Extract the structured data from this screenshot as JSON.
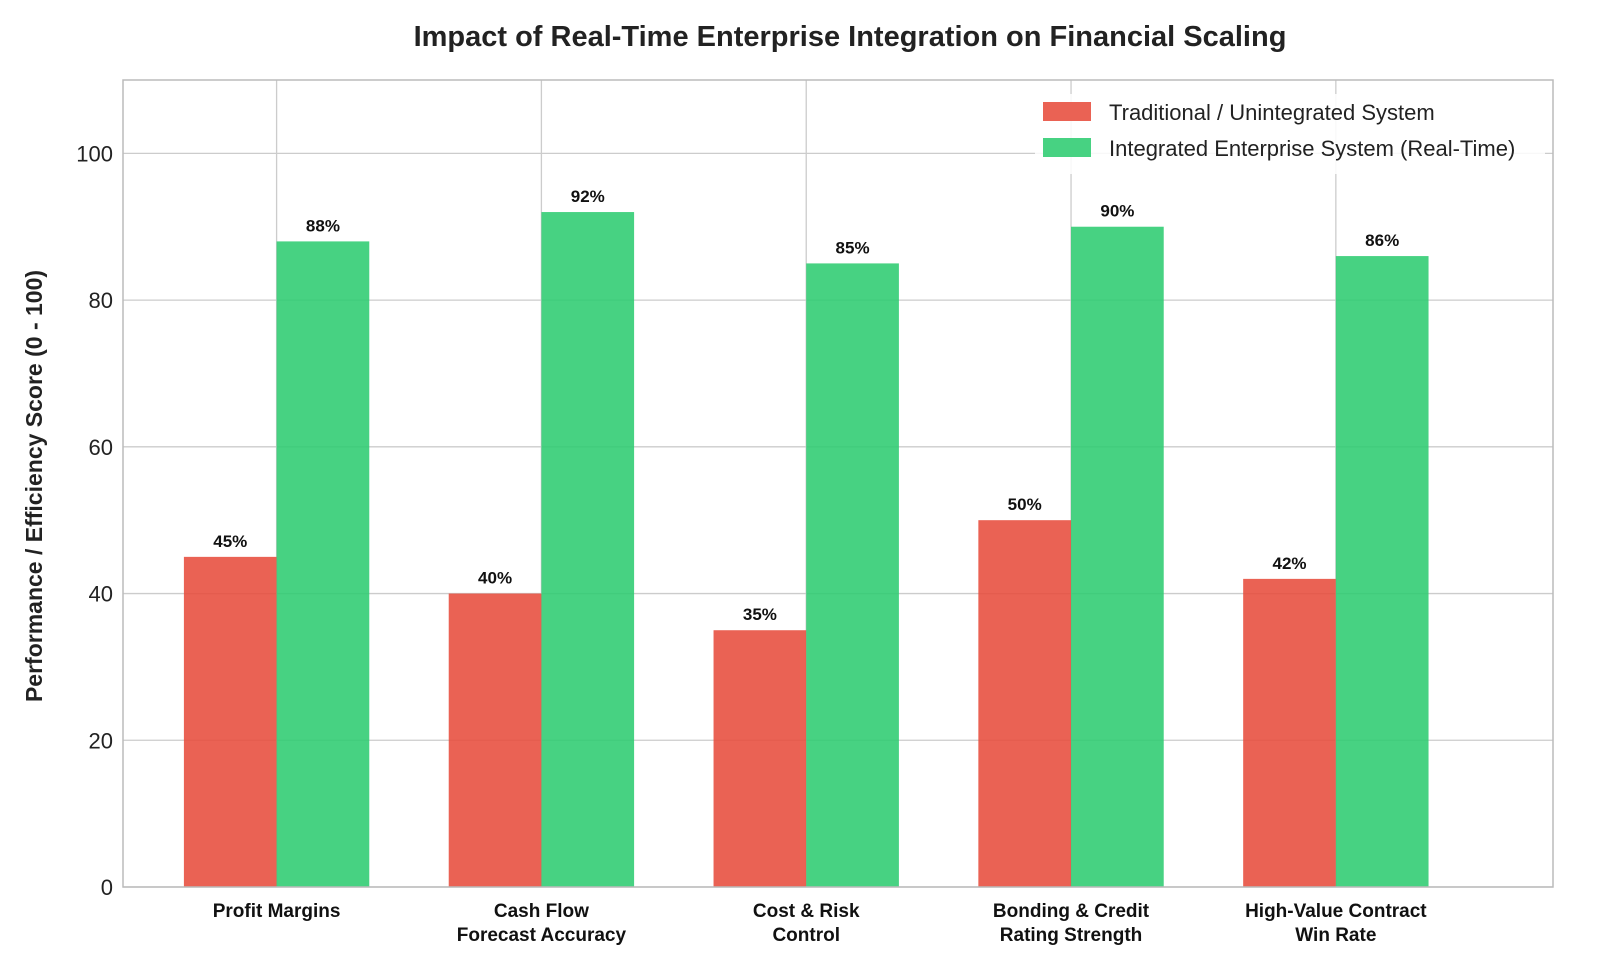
{
  "chart_data": {
    "type": "bar",
    "title": "Impact of Real-Time Enterprise Integration on Financial Scaling",
    "xlabel": "",
    "ylabel": "Performance / Efficiency Score (0 - 100)",
    "ylim": [
      0,
      110
    ],
    "yticks": [
      0,
      20,
      40,
      60,
      80,
      100
    ],
    "grid": true,
    "legend_position": "top-right",
    "value_suffix": "%",
    "categories": [
      [
        "Profit Margins"
      ],
      [
        "Cash Flow",
        "Forecast Accuracy"
      ],
      [
        "Cost & Risk",
        "Control"
      ],
      [
        "Bonding & Credit",
        "Rating Strength"
      ],
      [
        "High-Value Contract",
        "Win Rate"
      ]
    ],
    "series": [
      {
        "name": "Traditional / Unintegrated System",
        "color": "#e74c3c",
        "values": [
          45,
          40,
          35,
          50,
          42
        ]
      },
      {
        "name": "Integrated Enterprise System (Real-Time)",
        "color": "#2ecc71",
        "values": [
          88,
          92,
          85,
          90,
          86
        ]
      }
    ]
  }
}
